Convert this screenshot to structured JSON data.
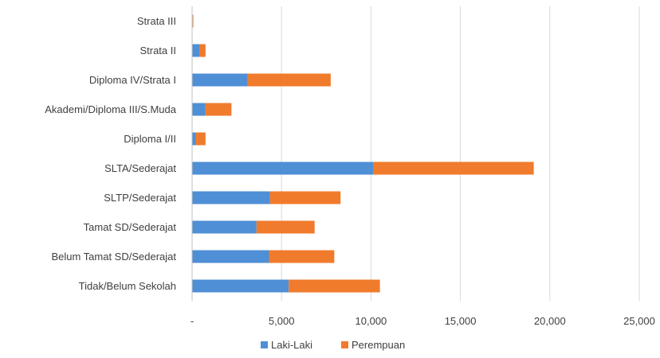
{
  "chart_data": {
    "type": "bar",
    "orientation": "horizontal",
    "stacked": true,
    "categories": [
      "Strata III",
      "Strata II",
      "Diploma IV/Strata I",
      "Akademi/Diploma III/S.Muda",
      "Diploma I/II",
      "SLTA/Sederajat",
      "SLTP/Sederajat",
      "Tamat SD/Sederajat",
      "Belum Tamat SD/Sederajat",
      "Tidak/Belum Sekolah"
    ],
    "series": [
      {
        "name": "Laki-Laki",
        "color": "#4f8fd6",
        "values": [
          30,
          400,
          3100,
          750,
          200,
          10150,
          4350,
          3600,
          4300,
          5400
        ]
      },
      {
        "name": "Perempuan",
        "color": "#f07b2c",
        "values": [
          40,
          350,
          4650,
          1450,
          550,
          8950,
          3950,
          3250,
          3650,
          5100
        ]
      }
    ],
    "xlim": [
      0,
      25000
    ],
    "xticks": [
      {
        "value": 0,
        "label": "-"
      },
      {
        "value": 5000,
        "label": "5,000"
      },
      {
        "value": 10000,
        "label": "10,000"
      },
      {
        "value": 15000,
        "label": "15,000"
      },
      {
        "value": 20000,
        "label": "20,000"
      },
      {
        "value": 25000,
        "label": "25,000"
      }
    ],
    "grid": "vertical",
    "legend_position": "bottom",
    "title": "",
    "xlabel": "",
    "ylabel": ""
  }
}
